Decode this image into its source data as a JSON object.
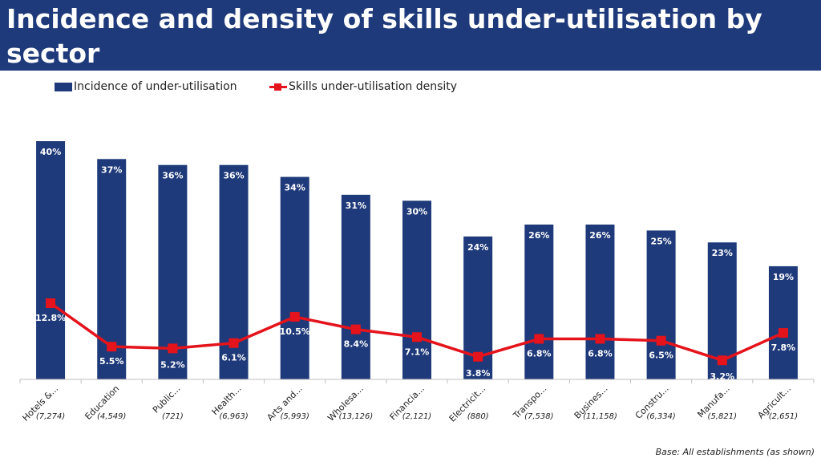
{
  "header": {
    "title": "Incidence and density of skills under-utilisation by sector"
  },
  "legend": {
    "bar_label": "Incidence of under-utilisation",
    "line_label": "Skills under-utilisation density"
  },
  "footer": {
    "note": "Base: All establishments (as shown)"
  },
  "colors": {
    "header_bg": "#1f3a7a",
    "bar": "#1f3a7a",
    "line": "#e5131b",
    "marker": "#e5131b",
    "axis": "#bfbfbf"
  },
  "chart_data": {
    "type": "bar",
    "categories": [
      "Hotels &...",
      "Education",
      "Public...",
      "Health...",
      "Arts and...",
      "Wholesa...",
      "Financia...",
      "Electricit...",
      "Transpo...",
      "Busines...",
      "Constru...",
      "Manufa...",
      "Agricult..."
    ],
    "bases": [
      "(7,274)",
      "(4,549)",
      "(721)",
      "(6,963)",
      "(5,993)",
      "(13,126)",
      "(2,121)",
      "(880)",
      "(7,538)",
      "(11,158)",
      "(6,334)",
      "(5,821)",
      "(2,651)"
    ],
    "series": [
      {
        "name": "Incidence of under-utilisation",
        "type": "bar",
        "values": [
          40,
          37,
          36,
          36,
          34,
          31,
          30,
          24,
          26,
          26,
          25,
          23,
          19
        ],
        "labels": [
          "40%",
          "37%",
          "36%",
          "36%",
          "34%",
          "31%",
          "30%",
          "24%",
          "26%",
          "26%",
          "25%",
          "23%",
          "19%"
        ]
      },
      {
        "name": "Skills under-utilisation density",
        "type": "line",
        "values": [
          12.8,
          5.5,
          5.2,
          6.1,
          10.5,
          8.4,
          7.1,
          3.8,
          6.8,
          6.8,
          6.5,
          3.2,
          7.8
        ],
        "labels": [
          "12.8%",
          "5.5%",
          "5.2%",
          "6.1%",
          "10.5%",
          "8.4%",
          "7.1%",
          "3.8%",
          "6.8%",
          "6.8%",
          "6.5%",
          "3.2%",
          "7.8%"
        ]
      }
    ],
    "ylim": [
      0,
      40
    ],
    "grid": false,
    "legend_position": "top"
  }
}
